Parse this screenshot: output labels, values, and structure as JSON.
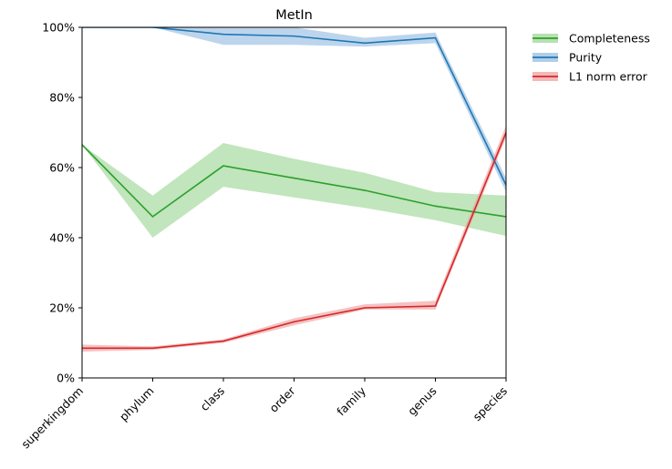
{
  "chart_data": {
    "type": "line",
    "title": "MetIn",
    "xlabel": "",
    "ylabel": "",
    "categories": [
      "superkingdom",
      "phylum",
      "class",
      "order",
      "family",
      "genus",
      "species"
    ],
    "yticks": [
      "0%",
      "20%",
      "40%",
      "60%",
      "80%",
      "100%"
    ],
    "ylim": [
      0,
      100
    ],
    "legend_position": "outside-right",
    "grid": false,
    "series": [
      {
        "name": "Completeness",
        "color": "#2ca02c",
        "band_color": "#98d490",
        "values": [
          66.5,
          46,
          60.5,
          57,
          53.5,
          49,
          46
        ],
        "lower": [
          66.5,
          40,
          54.5,
          51.5,
          48.5,
          45,
          40.5
        ],
        "upper": [
          66.5,
          52,
          67,
          62.5,
          58.5,
          53,
          52
        ]
      },
      {
        "name": "Purity",
        "color": "#1f77b4",
        "band_color": "#8fb9df",
        "values": [
          100,
          100,
          98,
          97.5,
          95.5,
          97,
          55
        ],
        "lower": [
          100,
          100,
          95,
          95,
          94.5,
          95.5,
          53
        ],
        "upper": [
          100,
          100,
          100,
          100,
          97,
          98.5,
          57
        ]
      },
      {
        "name": "L1 norm error",
        "color": "#d62728",
        "band_color": "#ef9a9a",
        "values": [
          8.5,
          8.5,
          10.5,
          16,
          20,
          20.5,
          70
        ],
        "lower": [
          7.5,
          8,
          10,
          15,
          19.5,
          19.5,
          68.5
        ],
        "upper": [
          9.5,
          9,
          11,
          17,
          21,
          22,
          72
        ]
      }
    ]
  }
}
